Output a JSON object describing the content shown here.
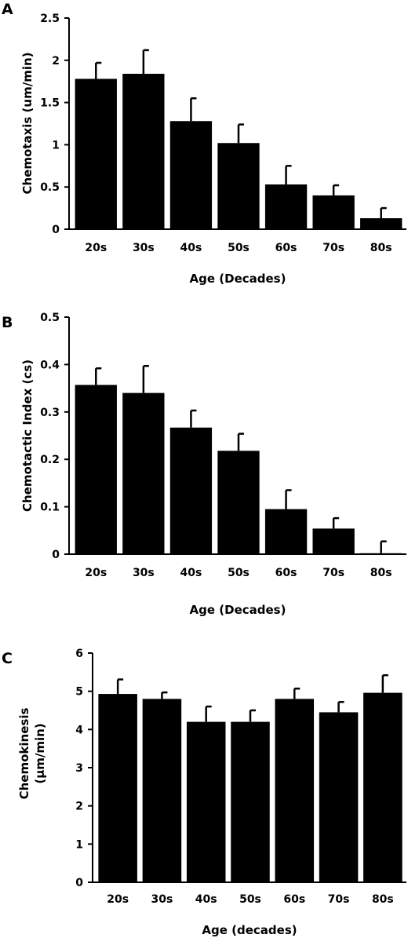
{
  "chart_data": [
    {
      "type": "bar",
      "panel_label": "A",
      "categories": [
        "20s",
        "30s",
        "40s",
        "50s",
        "60s",
        "70s",
        "80s"
      ],
      "values": [
        1.78,
        1.84,
        1.28,
        1.02,
        0.53,
        0.4,
        0.13
      ],
      "errors": [
        0.19,
        0.28,
        0.27,
        0.22,
        0.22,
        0.12,
        0.12
      ],
      "xlabel": "Age (Decades)",
      "ylabel": [
        "Chemotaxis (um/min)"
      ],
      "ylim": [
        0,
        2.5
      ],
      "yticks": [
        "0",
        "0.5",
        "1",
        "1.5",
        "2",
        "2.5"
      ],
      "ytick_values": [
        0,
        0.5,
        1,
        1.5,
        2,
        2.5
      ],
      "color": "#000000",
      "grid": false
    },
    {
      "type": "bar",
      "panel_label": "B",
      "categories": [
        "20s",
        "30s",
        "40s",
        "50s",
        "60s",
        "70s",
        "80s"
      ],
      "values": [
        0.357,
        0.34,
        0.267,
        0.218,
        0.095,
        0.054,
        0.002
      ],
      "errors": [
        0.035,
        0.057,
        0.036,
        0.036,
        0.04,
        0.022,
        0.025
      ],
      "xlabel": "Age (Decades)",
      "ylabel": [
        "Chemotactic Index (cs)"
      ],
      "ylim": [
        0,
        0.5
      ],
      "yticks": [
        "0",
        "0.1",
        "0.2",
        "0.3",
        "0.4",
        "0.5"
      ],
      "ytick_values": [
        0,
        0.1,
        0.2,
        0.3,
        0.4,
        0.5
      ],
      "color": "#000000",
      "grid": false
    },
    {
      "type": "bar",
      "panel_label": "C",
      "categories": [
        "20s",
        "30s",
        "40s",
        "50s",
        "60s",
        "70s",
        "80s"
      ],
      "values": [
        4.93,
        4.8,
        4.2,
        4.2,
        4.8,
        4.45,
        4.96
      ],
      "errors": [
        0.38,
        0.17,
        0.4,
        0.3,
        0.27,
        0.27,
        0.46
      ],
      "xlabel": "Age (decades)",
      "ylabel": [
        "Chemokinesis",
        "(µm/min)"
      ],
      "ylim": [
        0,
        6
      ],
      "yticks": [
        "0",
        "1",
        "2",
        "3",
        "4",
        "5",
        "6"
      ],
      "ytick_values": [
        0,
        1,
        2,
        3,
        4,
        5,
        6
      ],
      "color": "#000000",
      "grid": false
    }
  ]
}
